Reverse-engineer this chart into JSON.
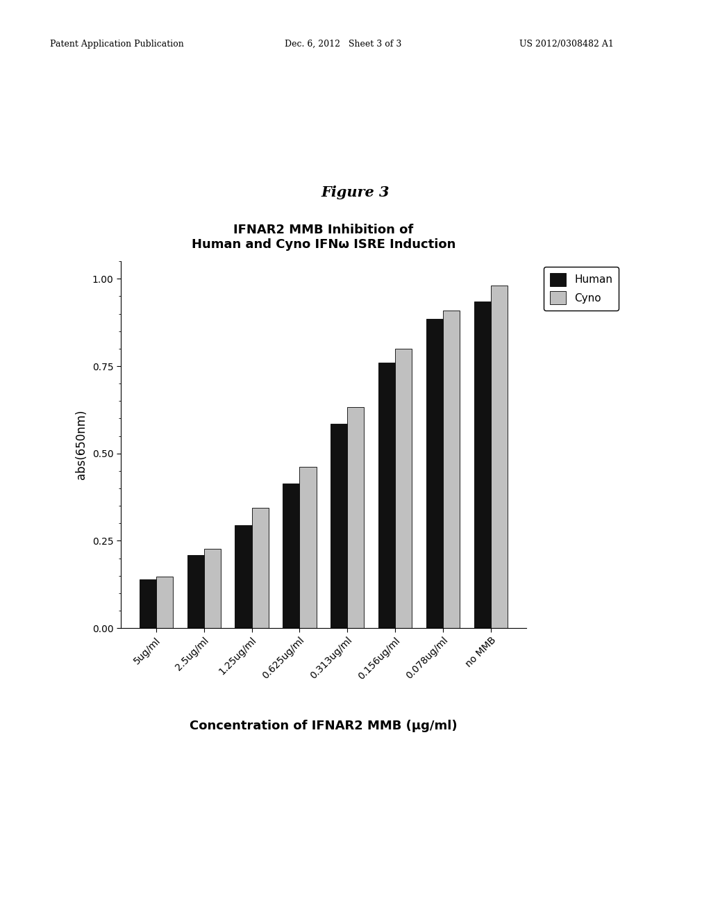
{
  "title_line1": "IFNAR2 MMB Inhibition of",
  "title_line2": "Human and Cyno IFNω ISRE Induction",
  "figure_label": "Figure 3",
  "xlabel": "Concentration of IFNAR2 MMB (μg/ml)",
  "ylabel": "abs(650nm)",
  "categories": [
    "5ug/ml",
    "2.5ug/ml",
    "1.25ug/ml",
    "0.625ug/ml",
    "0.313ug/ml",
    "0.156ug/ml",
    "0.078ug/ml",
    "no MMB"
  ],
  "human_values": [
    0.14,
    0.21,
    0.295,
    0.415,
    0.585,
    0.76,
    0.885,
    0.935
  ],
  "cyno_values": [
    0.148,
    0.228,
    0.345,
    0.462,
    0.632,
    0.8,
    0.91,
    0.98
  ],
  "human_color": "#111111",
  "cyno_color": "#c0c0c0",
  "bar_edge_color": "#000000",
  "background_color": "#ffffff",
  "ylim": [
    0.0,
    1.05
  ],
  "yticks": [
    0.0,
    0.25,
    0.5,
    0.75,
    1.0
  ],
  "legend_labels": [
    "Human",
    "Cyno"
  ],
  "header_left": "Patent Application Publication",
  "header_mid": "Dec. 6, 2012   Sheet 3 of 3",
  "header_right": "US 2012/0308482 A1",
  "title_fontsize": 13,
  "axis_label_fontsize": 12,
  "tick_fontsize": 10,
  "legend_fontsize": 11,
  "bar_width": 0.35,
  "figure_label_fontsize": 15
}
